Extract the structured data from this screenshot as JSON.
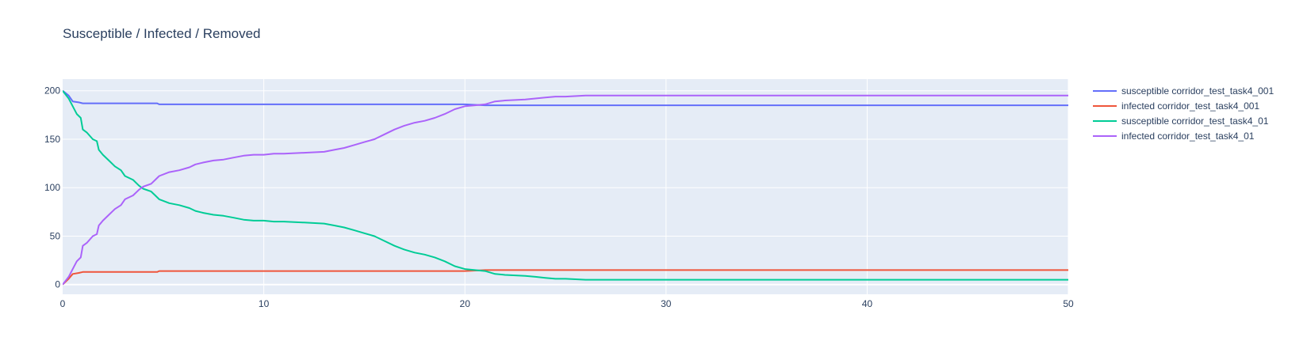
{
  "chart_data": {
    "type": "line",
    "title": "Susceptible / Infected / Removed",
    "xlabel": "",
    "ylabel": "",
    "xlim": [
      0,
      50
    ],
    "ylim": [
      -10,
      212
    ],
    "xticks": [
      0,
      10,
      20,
      30,
      40,
      50
    ],
    "yticks": [
      0,
      50,
      100,
      150,
      200
    ],
    "grid": true,
    "legend_position": "right",
    "series": [
      {
        "name": "susceptible corridor_test_task4_001",
        "color": "#636efa",
        "points": [
          [
            0,
            200
          ],
          [
            0.3,
            195
          ],
          [
            0.5,
            189
          ],
          [
            0.8,
            188
          ],
          [
            1,
            187
          ],
          [
            2,
            187
          ],
          [
            3,
            187
          ],
          [
            4,
            187
          ],
          [
            4.7,
            187
          ],
          [
            4.8,
            186
          ],
          [
            10,
            186
          ],
          [
            20,
            186
          ],
          [
            21,
            185
          ],
          [
            30,
            185
          ],
          [
            40,
            185
          ],
          [
            50,
            185
          ]
        ]
      },
      {
        "name": "infected corridor_test_task4_001",
        "color": "#ef553b",
        "points": [
          [
            0,
            0
          ],
          [
            0.3,
            6
          ],
          [
            0.5,
            11
          ],
          [
            0.8,
            12
          ],
          [
            1,
            13
          ],
          [
            2,
            13
          ],
          [
            3,
            13
          ],
          [
            4,
            13
          ],
          [
            4.7,
            13
          ],
          [
            4.8,
            14
          ],
          [
            10,
            14
          ],
          [
            20,
            14
          ],
          [
            21,
            15
          ],
          [
            30,
            15
          ],
          [
            40,
            15
          ],
          [
            50,
            15
          ]
        ]
      },
      {
        "name": "susceptible corridor_test_task4_01",
        "color": "#00cc96",
        "points": [
          [
            0,
            200
          ],
          [
            0.3,
            192
          ],
          [
            0.5,
            184
          ],
          [
            0.7,
            176
          ],
          [
            0.9,
            172
          ],
          [
            1,
            160
          ],
          [
            1.2,
            157
          ],
          [
            1.5,
            150
          ],
          [
            1.7,
            148
          ],
          [
            1.8,
            139
          ],
          [
            2,
            134
          ],
          [
            2.3,
            128
          ],
          [
            2.6,
            122
          ],
          [
            2.9,
            118
          ],
          [
            3.1,
            112
          ],
          [
            3.5,
            108
          ],
          [
            3.8,
            102
          ],
          [
            4,
            99
          ],
          [
            4.4,
            96
          ],
          [
            4.6,
            92
          ],
          [
            4.8,
            88
          ],
          [
            5.3,
            84
          ],
          [
            5.8,
            82
          ],
          [
            6.3,
            79
          ],
          [
            6.6,
            76
          ],
          [
            7,
            74
          ],
          [
            7.5,
            72
          ],
          [
            8,
            71
          ],
          [
            8.5,
            69
          ],
          [
            9,
            67
          ],
          [
            9.5,
            66
          ],
          [
            10,
            66
          ],
          [
            10.5,
            65
          ],
          [
            11,
            65
          ],
          [
            12,
            64
          ],
          [
            13,
            63
          ],
          [
            13.5,
            61
          ],
          [
            14,
            59
          ],
          [
            14.5,
            56
          ],
          [
            15,
            53
          ],
          [
            15.5,
            50
          ],
          [
            16,
            45
          ],
          [
            16.5,
            40
          ],
          [
            17,
            36
          ],
          [
            17.5,
            33
          ],
          [
            18,
            31
          ],
          [
            18.5,
            28
          ],
          [
            19,
            24
          ],
          [
            19.5,
            19
          ],
          [
            20,
            16
          ],
          [
            20.5,
            15
          ],
          [
            21,
            14
          ],
          [
            21.5,
            11
          ],
          [
            22,
            10
          ],
          [
            23,
            9
          ],
          [
            23.5,
            8
          ],
          [
            24,
            7
          ],
          [
            24.5,
            6
          ],
          [
            25,
            6
          ],
          [
            26,
            5
          ],
          [
            30,
            5
          ],
          [
            40,
            5
          ],
          [
            50,
            5
          ]
        ]
      },
      {
        "name": "infected corridor_test_task4_01",
        "color": "#ab63fa",
        "points": [
          [
            0,
            0
          ],
          [
            0.3,
            8
          ],
          [
            0.5,
            16
          ],
          [
            0.7,
            24
          ],
          [
            0.9,
            28
          ],
          [
            1,
            40
          ],
          [
            1.2,
            43
          ],
          [
            1.5,
            50
          ],
          [
            1.7,
            52
          ],
          [
            1.8,
            61
          ],
          [
            2,
            66
          ],
          [
            2.3,
            72
          ],
          [
            2.6,
            78
          ],
          [
            2.9,
            82
          ],
          [
            3.1,
            88
          ],
          [
            3.5,
            92
          ],
          [
            3.8,
            98
          ],
          [
            4,
            101
          ],
          [
            4.4,
            104
          ],
          [
            4.6,
            108
          ],
          [
            4.8,
            112
          ],
          [
            5.3,
            116
          ],
          [
            5.8,
            118
          ],
          [
            6.3,
            121
          ],
          [
            6.6,
            124
          ],
          [
            7,
            126
          ],
          [
            7.5,
            128
          ],
          [
            8,
            129
          ],
          [
            8.5,
            131
          ],
          [
            9,
            133
          ],
          [
            9.5,
            134
          ],
          [
            10,
            134
          ],
          [
            10.5,
            135
          ],
          [
            11,
            135
          ],
          [
            12,
            136
          ],
          [
            13,
            137
          ],
          [
            13.5,
            139
          ],
          [
            14,
            141
          ],
          [
            14.5,
            144
          ],
          [
            15,
            147
          ],
          [
            15.5,
            150
          ],
          [
            16,
            155
          ],
          [
            16.5,
            160
          ],
          [
            17,
            164
          ],
          [
            17.5,
            167
          ],
          [
            18,
            169
          ],
          [
            18.5,
            172
          ],
          [
            19,
            176
          ],
          [
            19.5,
            181
          ],
          [
            20,
            184
          ],
          [
            20.5,
            185
          ],
          [
            21,
            186
          ],
          [
            21.5,
            189
          ],
          [
            22,
            190
          ],
          [
            23,
            191
          ],
          [
            23.5,
            192
          ],
          [
            24,
            193
          ],
          [
            24.5,
            194
          ],
          [
            25,
            194
          ],
          [
            26,
            195
          ],
          [
            30,
            195
          ],
          [
            40,
            195
          ],
          [
            50,
            195
          ]
        ]
      }
    ]
  }
}
